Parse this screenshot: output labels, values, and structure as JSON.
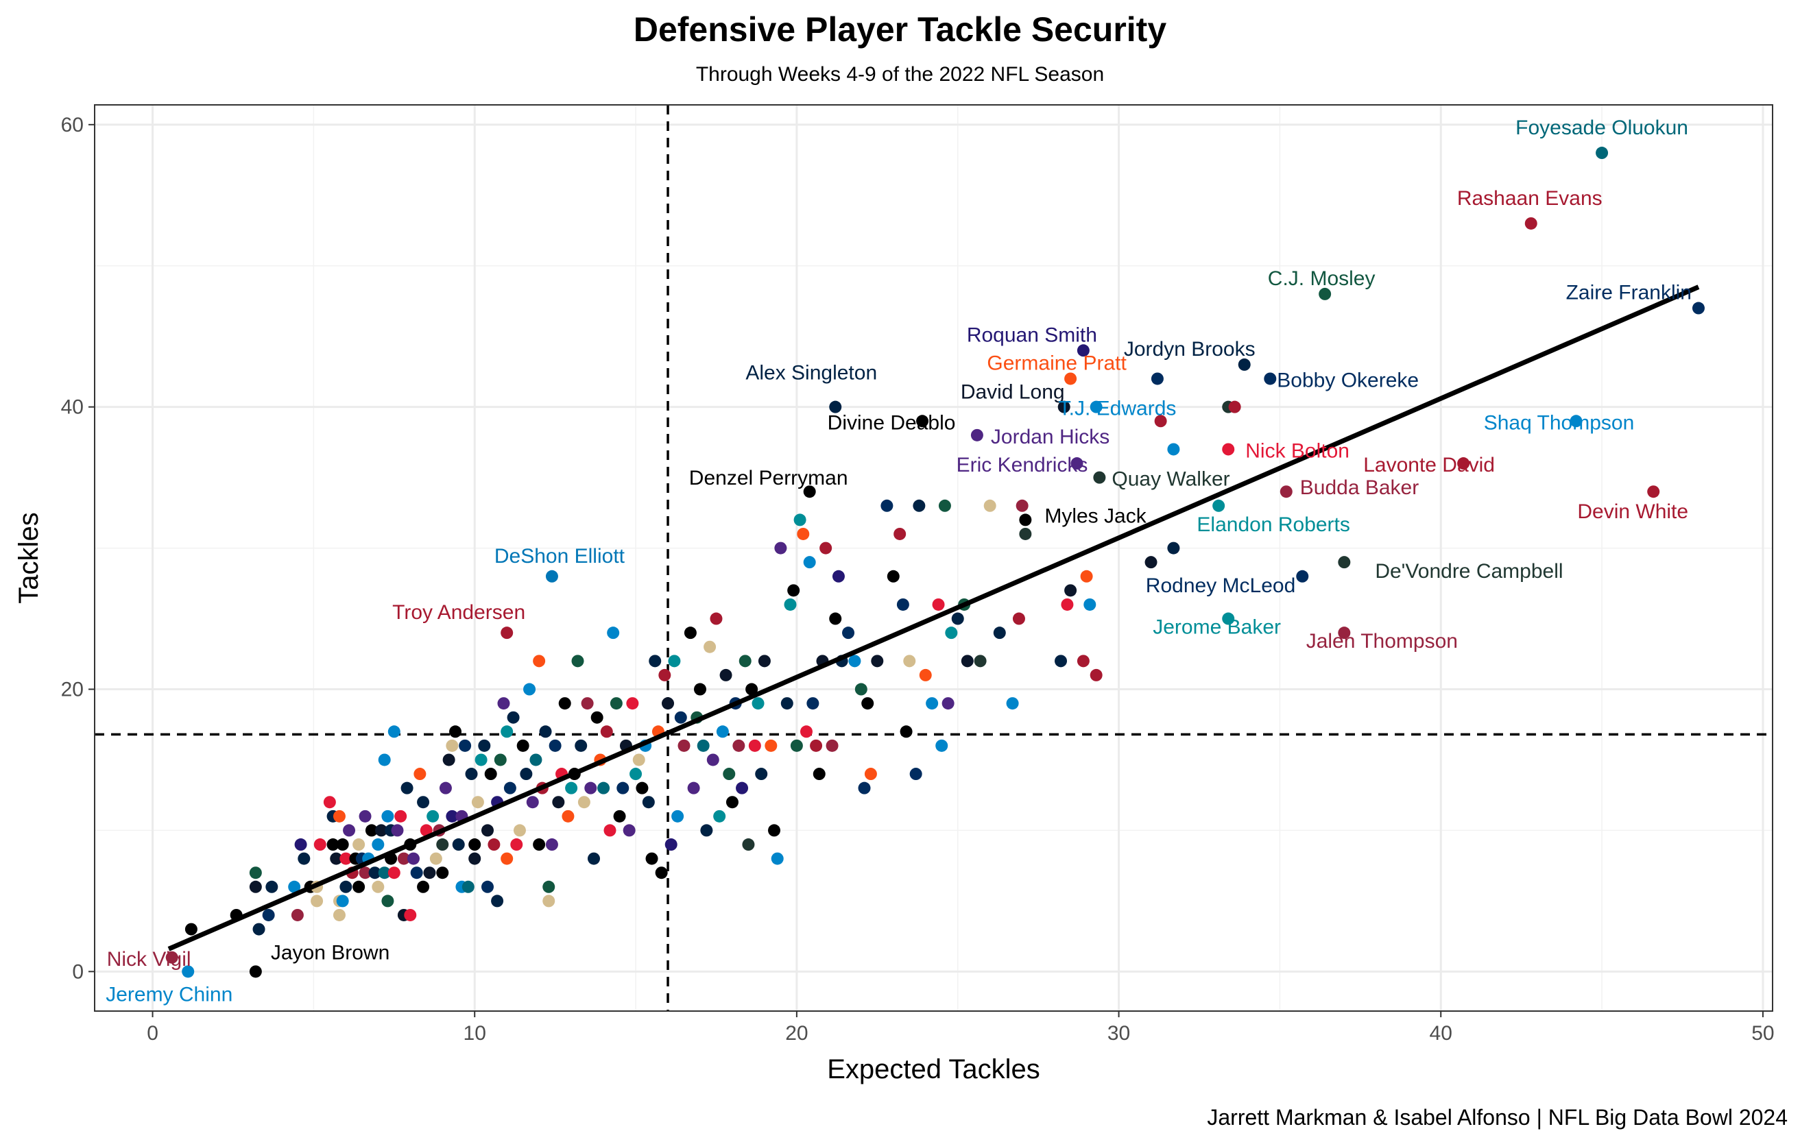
{
  "chart_data": {
    "type": "scatter",
    "title": "Defensive Player Tackle Security",
    "subtitle": "Through Weeks 4-9 of the 2022 NFL Season",
    "caption": "Jarrett Markman & Isabel Alfonso | NFL Big Data Bowl 2024",
    "xlabel": "Expected Tackles",
    "ylabel": "Tackles",
    "xlim": [
      -1.8,
      50.3
    ],
    "ylim": [
      -2.8,
      61.4
    ],
    "x_ticks": [
      0,
      10,
      20,
      30,
      40,
      50
    ],
    "y_ticks": [
      0,
      20,
      40,
      60
    ],
    "grid": true,
    "reference_lines": {
      "vertical_x": 16.0,
      "horizontal_y": 16.8
    },
    "trend_line": {
      "x1": 0.5,
      "y1": 1.6,
      "x2": 48.0,
      "y2": 48.5
    },
    "labeled_players": [
      {
        "name": "Foyesade Oluokun",
        "x": 45.0,
        "y": 58,
        "color": "#006778"
      },
      {
        "name": "Rashaan Evans",
        "x": 42.8,
        "y": 53,
        "color": "#a71930"
      },
      {
        "name": "C.J. Mosley",
        "x": 36.4,
        "y": 48,
        "color": "#125740"
      },
      {
        "name": "Zaire Franklin",
        "x": 48.0,
        "y": 47,
        "color": "#002c5f"
      },
      {
        "name": "Roquan Smith",
        "x": 28.9,
        "y": 44,
        "color": "#241773"
      },
      {
        "name": "Jordyn Brooks",
        "x": 33.9,
        "y": 43,
        "color": "#002244"
      },
      {
        "name": "Germaine Pratt",
        "x": 28.5,
        "y": 42,
        "color": "#fb4f14"
      },
      {
        "name": "Alex Singleton",
        "x": 21.2,
        "y": 40,
        "color": "#002244"
      },
      {
        "name": "Divine Deablo",
        "x": 23.9,
        "y": 39,
        "color": "#000000"
      },
      {
        "name": "David Long",
        "x": 28.3,
        "y": 40,
        "color": "#0b162a"
      },
      {
        "name": "T.J. Edwards",
        "x": 29.3,
        "y": 40,
        "color": "#0085ca"
      },
      {
        "name": "Bobby Okereke",
        "x": 34.7,
        "y": 42,
        "color": "#002c5f"
      },
      {
        "name": "Shaq Thompson",
        "x": 44.2,
        "y": 39,
        "color": "#0085ca"
      },
      {
        "name": "Jordan Hicks",
        "x": 25.6,
        "y": 38,
        "color": "#4f2683"
      },
      {
        "name": "Nick Bolton",
        "x": 33.4,
        "y": 37,
        "color": "#e31837"
      },
      {
        "name": "Lavonte David",
        "x": 40.7,
        "y": 36,
        "color": "#a71930"
      },
      {
        "name": "Eric Kendricks",
        "x": 28.7,
        "y": 36,
        "color": "#4f2683"
      },
      {
        "name": "Quay Walker",
        "x": 29.4,
        "y": 35,
        "color": "#203731"
      },
      {
        "name": "Budda Baker",
        "x": 35.2,
        "y": 34,
        "color": "#97233f"
      },
      {
        "name": "Devin White",
        "x": 46.6,
        "y": 34,
        "color": "#a71930"
      },
      {
        "name": "Denzel Perryman",
        "x": 20.4,
        "y": 34,
        "color": "#000000"
      },
      {
        "name": "Myles Jack",
        "x": 27.1,
        "y": 32,
        "color": "#000000"
      },
      {
        "name": "Elandon Roberts",
        "x": 33.1,
        "y": 33,
        "color": "#008e97"
      },
      {
        "name": "DeShon Elliott",
        "x": 12.4,
        "y": 28,
        "color": "#0076b6"
      },
      {
        "name": "De'Vondre Campbell",
        "x": 37.0,
        "y": 29,
        "color": "#203731"
      },
      {
        "name": "Rodney McLeod",
        "x": 35.7,
        "y": 28,
        "color": "#002c5f"
      },
      {
        "name": "Troy Andersen",
        "x": 11.0,
        "y": 24,
        "color": "#a71930"
      },
      {
        "name": "Jerome Baker",
        "x": 33.4,
        "y": 25,
        "color": "#008e97"
      },
      {
        "name": "Jalen Thompson",
        "x": 37.0,
        "y": 24,
        "color": "#97233f"
      },
      {
        "name": "Nick Vigil",
        "x": 0.6,
        "y": 1,
        "color": "#97233f"
      },
      {
        "name": "Jayon Brown",
        "x": 3.2,
        "y": 0,
        "color": "#000000"
      },
      {
        "name": "Jeremy Chinn",
        "x": 1.1,
        "y": 0,
        "color": "#0085ca"
      }
    ],
    "other_players": [
      [
        1.2,
        3,
        "#000000"
      ],
      [
        2.6,
        4,
        "#000000"
      ],
      [
        3.3,
        3,
        "#002244"
      ],
      [
        3.2,
        6,
        "#0b162a"
      ],
      [
        3.2,
        7,
        "#125740"
      ],
      [
        3.6,
        4,
        "#002c5f"
      ],
      [
        3.7,
        6,
        "#002244"
      ],
      [
        4.4,
        6,
        "#0085ca"
      ],
      [
        4.5,
        4,
        "#97233f"
      ],
      [
        4.6,
        9,
        "#241773"
      ],
      [
        4.7,
        8,
        "#002244"
      ],
      [
        4.9,
        6,
        "#000000"
      ],
      [
        5.1,
        5,
        "#d3bc8d"
      ],
      [
        5.1,
        6,
        "#d3bc8d"
      ],
      [
        5.2,
        9,
        "#e31837"
      ],
      [
        5.5,
        12,
        "#e31837"
      ],
      [
        5.6,
        11,
        "#002244"
      ],
      [
        5.6,
        9,
        "#000000"
      ],
      [
        5.7,
        8,
        "#0b162a"
      ],
      [
        5.8,
        5,
        "#d3bc8d"
      ],
      [
        5.8,
        4,
        "#d3bc8d"
      ],
      [
        5.8,
        11,
        "#fb4f14"
      ],
      [
        5.9,
        9,
        "#000000"
      ],
      [
        5.9,
        5,
        "#0085ca"
      ],
      [
        6.0,
        8,
        "#e31837"
      ],
      [
        6.0,
        6,
        "#002244"
      ],
      [
        6.1,
        10,
        "#4f2683"
      ],
      [
        6.2,
        7,
        "#a71930"
      ],
      [
        6.3,
        8,
        "#000000"
      ],
      [
        6.4,
        9,
        "#d3bc8d"
      ],
      [
        6.4,
        6,
        "#000000"
      ],
      [
        6.5,
        8,
        "#002c5f"
      ],
      [
        6.6,
        7,
        "#97233f"
      ],
      [
        6.6,
        11,
        "#4f2683"
      ],
      [
        6.7,
        8,
        "#0085ca"
      ],
      [
        6.8,
        10,
        "#000000"
      ],
      [
        6.9,
        7,
        "#002244"
      ],
      [
        7.0,
        6,
        "#d3bc8d"
      ],
      [
        7.0,
        9,
        "#0085ca"
      ],
      [
        7.1,
        10,
        "#0b162a"
      ],
      [
        7.2,
        15,
        "#0085ca"
      ],
      [
        7.2,
        7,
        "#006778"
      ],
      [
        7.3,
        5,
        "#125740"
      ],
      [
        7.3,
        11,
        "#0085ca"
      ],
      [
        7.4,
        8,
        "#000000"
      ],
      [
        7.4,
        10,
        "#002244"
      ],
      [
        7.5,
        7,
        "#e31837"
      ],
      [
        7.5,
        17,
        "#0085ca"
      ],
      [
        7.6,
        10,
        "#4f2683"
      ],
      [
        7.7,
        11,
        "#e31837"
      ],
      [
        7.8,
        8,
        "#97233f"
      ],
      [
        7.8,
        4,
        "#0b162a"
      ],
      [
        7.9,
        13,
        "#002244"
      ],
      [
        8.0,
        9,
        "#000000"
      ],
      [
        8.0,
        4,
        "#e31837"
      ],
      [
        8.1,
        8,
        "#4f2683"
      ],
      [
        8.2,
        7,
        "#002c5f"
      ],
      [
        8.3,
        14,
        "#fb4f14"
      ],
      [
        8.4,
        6,
        "#000000"
      ],
      [
        8.4,
        12,
        "#002244"
      ],
      [
        8.5,
        10,
        "#e31837"
      ],
      [
        8.6,
        7,
        "#0b162a"
      ],
      [
        8.7,
        11,
        "#008e97"
      ],
      [
        8.8,
        8,
        "#d3bc8d"
      ],
      [
        8.9,
        10,
        "#97233f"
      ],
      [
        9.0,
        9,
        "#203731"
      ],
      [
        9.0,
        7,
        "#000000"
      ],
      [
        9.1,
        13,
        "#4f2683"
      ],
      [
        9.2,
        15,
        "#0b162a"
      ],
      [
        9.3,
        16,
        "#d3bc8d"
      ],
      [
        9.3,
        11,
        "#241773"
      ],
      [
        9.4,
        17,
        "#000000"
      ],
      [
        9.5,
        9,
        "#002244"
      ],
      [
        9.6,
        11,
        "#4f2683"
      ],
      [
        9.6,
        6,
        "#0085ca"
      ],
      [
        9.7,
        16,
        "#002c5f"
      ],
      [
        9.8,
        6,
        "#006778"
      ],
      [
        9.9,
        14,
        "#002244"
      ],
      [
        10.0,
        9,
        "#000000"
      ],
      [
        10.0,
        8,
        "#0b162a"
      ],
      [
        10.1,
        12,
        "#d3bc8d"
      ],
      [
        10.2,
        15,
        "#008e97"
      ],
      [
        10.3,
        16,
        "#002244"
      ],
      [
        10.4,
        10,
        "#0b162a"
      ],
      [
        10.4,
        6,
        "#002c5f"
      ],
      [
        10.5,
        14,
        "#000000"
      ],
      [
        10.6,
        9,
        "#a71930"
      ],
      [
        10.7,
        5,
        "#002244"
      ],
      [
        10.7,
        12,
        "#241773"
      ],
      [
        10.8,
        15,
        "#125740"
      ],
      [
        10.9,
        19,
        "#4f2683"
      ],
      [
        11.0,
        17,
        "#008e97"
      ],
      [
        11.0,
        8,
        "#fb4f14"
      ],
      [
        11.1,
        13,
        "#002c5f"
      ],
      [
        11.2,
        18,
        "#002244"
      ],
      [
        11.3,
        9,
        "#e31837"
      ],
      [
        11.4,
        10,
        "#d3bc8d"
      ],
      [
        11.5,
        16,
        "#000000"
      ],
      [
        11.6,
        14,
        "#002244"
      ],
      [
        11.7,
        20,
        "#0085ca"
      ],
      [
        11.8,
        12,
        "#4f2683"
      ],
      [
        11.9,
        15,
        "#006778"
      ],
      [
        12.0,
        9,
        "#000000"
      ],
      [
        12.0,
        22,
        "#fb4f14"
      ],
      [
        12.1,
        13,
        "#a71930"
      ],
      [
        12.2,
        17,
        "#002244"
      ],
      [
        12.3,
        5,
        "#d3bc8d"
      ],
      [
        12.3,
        6,
        "#125740"
      ],
      [
        12.4,
        9,
        "#4f2683"
      ],
      [
        12.5,
        16,
        "#002c5f"
      ],
      [
        12.6,
        12,
        "#0b162a"
      ],
      [
        12.7,
        14,
        "#e31837"
      ],
      [
        12.8,
        19,
        "#000000"
      ],
      [
        12.9,
        11,
        "#fb4f14"
      ],
      [
        13.0,
        13,
        "#008e97"
      ],
      [
        13.1,
        14,
        "#000000"
      ],
      [
        13.2,
        22,
        "#125740"
      ],
      [
        13.3,
        16,
        "#002244"
      ],
      [
        13.4,
        12,
        "#d3bc8d"
      ],
      [
        13.5,
        19,
        "#97233f"
      ],
      [
        13.6,
        13,
        "#4f2683"
      ],
      [
        13.7,
        8,
        "#002244"
      ],
      [
        13.8,
        18,
        "#000000"
      ],
      [
        13.9,
        15,
        "#fb4f14"
      ],
      [
        14.0,
        13,
        "#006778"
      ],
      [
        14.1,
        17,
        "#a71930"
      ],
      [
        14.2,
        10,
        "#e31837"
      ],
      [
        14.3,
        24,
        "#0085ca"
      ],
      [
        14.4,
        19,
        "#125740"
      ],
      [
        14.5,
        11,
        "#000000"
      ],
      [
        14.6,
        13,
        "#002c5f"
      ],
      [
        14.7,
        16,
        "#0b162a"
      ],
      [
        14.8,
        10,
        "#4f2683"
      ],
      [
        14.9,
        19,
        "#e31837"
      ],
      [
        15.0,
        14,
        "#008e97"
      ],
      [
        15.1,
        15,
        "#d3bc8d"
      ],
      [
        15.2,
        13,
        "#000000"
      ],
      [
        15.3,
        16,
        "#0085ca"
      ],
      [
        15.4,
        12,
        "#002244"
      ],
      [
        15.5,
        8,
        "#000000"
      ],
      [
        15.6,
        22,
        "#002244"
      ],
      [
        15.7,
        17,
        "#fb4f14"
      ],
      [
        15.8,
        7,
        "#000000"
      ],
      [
        15.9,
        21,
        "#a71930"
      ],
      [
        16.0,
        19,
        "#0b162a"
      ],
      [
        16.1,
        9,
        "#241773"
      ],
      [
        16.2,
        22,
        "#008e97"
      ],
      [
        16.3,
        11,
        "#0085ca"
      ],
      [
        16.4,
        18,
        "#002c5f"
      ],
      [
        16.5,
        16,
        "#97233f"
      ],
      [
        16.7,
        24,
        "#000000"
      ],
      [
        16.8,
        13,
        "#4f2683"
      ],
      [
        16.9,
        18,
        "#125740"
      ],
      [
        17.0,
        20,
        "#000000"
      ],
      [
        17.1,
        16,
        "#006778"
      ],
      [
        17.2,
        10,
        "#002244"
      ],
      [
        17.3,
        23,
        "#d3bc8d"
      ],
      [
        17.4,
        15,
        "#4f2683"
      ],
      [
        17.5,
        25,
        "#a71930"
      ],
      [
        17.6,
        11,
        "#008e97"
      ],
      [
        17.7,
        17,
        "#0085ca"
      ],
      [
        17.8,
        21,
        "#0b162a"
      ],
      [
        17.9,
        14,
        "#125740"
      ],
      [
        18.0,
        12,
        "#000000"
      ],
      [
        18.1,
        19,
        "#002c5f"
      ],
      [
        18.2,
        16,
        "#97233f"
      ],
      [
        18.3,
        13,
        "#241773"
      ],
      [
        18.4,
        22,
        "#125740"
      ],
      [
        18.5,
        9,
        "#203731"
      ],
      [
        18.6,
        20,
        "#000000"
      ],
      [
        18.7,
        16,
        "#e31837"
      ],
      [
        18.8,
        19,
        "#008e97"
      ],
      [
        18.9,
        14,
        "#002244"
      ],
      [
        19.0,
        22,
        "#0b162a"
      ],
      [
        19.2,
        16,
        "#fb4f14"
      ],
      [
        19.3,
        10,
        "#000000"
      ],
      [
        19.4,
        8,
        "#0085ca"
      ],
      [
        19.5,
        30,
        "#4f2683"
      ],
      [
        19.7,
        19,
        "#002244"
      ],
      [
        19.8,
        26,
        "#008e97"
      ],
      [
        19.9,
        27,
        "#000000"
      ],
      [
        20.0,
        16,
        "#125740"
      ],
      [
        20.1,
        32,
        "#008e97"
      ],
      [
        20.2,
        31,
        "#fb4f14"
      ],
      [
        20.3,
        17,
        "#e31837"
      ],
      [
        20.4,
        29,
        "#0085ca"
      ],
      [
        20.5,
        19,
        "#002c5f"
      ],
      [
        20.6,
        16,
        "#a71930"
      ],
      [
        20.7,
        14,
        "#000000"
      ],
      [
        20.8,
        22,
        "#0b162a"
      ],
      [
        20.9,
        30,
        "#a71930"
      ],
      [
        21.1,
        16,
        "#97233f"
      ],
      [
        21.2,
        25,
        "#000000"
      ],
      [
        21.3,
        28,
        "#241773"
      ],
      [
        21.4,
        22,
        "#002244"
      ],
      [
        21.6,
        24,
        "#002c5f"
      ],
      [
        21.8,
        22,
        "#0085ca"
      ],
      [
        22.0,
        20,
        "#125740"
      ],
      [
        22.1,
        13,
        "#002c5f"
      ],
      [
        22.2,
        19,
        "#000000"
      ],
      [
        22.3,
        14,
        "#fb4f14"
      ],
      [
        22.5,
        22,
        "#0b162a"
      ],
      [
        22.8,
        33,
        "#002c5f"
      ],
      [
        23.0,
        28,
        "#000000"
      ],
      [
        23.2,
        31,
        "#a71930"
      ],
      [
        23.3,
        26,
        "#002c5f"
      ],
      [
        23.4,
        17,
        "#000000"
      ],
      [
        23.5,
        22,
        "#d3bc8d"
      ],
      [
        23.7,
        14,
        "#002c5f"
      ],
      [
        23.8,
        33,
        "#002244"
      ],
      [
        24.0,
        21,
        "#fb4f14"
      ],
      [
        24.2,
        19,
        "#0085ca"
      ],
      [
        24.4,
        26,
        "#e31837"
      ],
      [
        24.5,
        16,
        "#0085ca"
      ],
      [
        24.6,
        33,
        "#125740"
      ],
      [
        24.7,
        19,
        "#4f2683"
      ],
      [
        24.8,
        24,
        "#008e97"
      ],
      [
        25.0,
        25,
        "#002244"
      ],
      [
        25.2,
        26,
        "#125740"
      ],
      [
        25.3,
        22,
        "#0b162a"
      ],
      [
        25.7,
        22,
        "#203731"
      ],
      [
        26.0,
        33,
        "#d3bc8d"
      ],
      [
        26.3,
        24,
        "#002244"
      ],
      [
        26.7,
        19,
        "#0085ca"
      ],
      [
        26.9,
        25,
        "#a71930"
      ],
      [
        27.0,
        33,
        "#97233f"
      ],
      [
        27.1,
        31,
        "#203731"
      ],
      [
        28.2,
        22,
        "#002244"
      ],
      [
        28.4,
        26,
        "#e31837"
      ],
      [
        28.5,
        27,
        "#0b162a"
      ],
      [
        28.9,
        22,
        "#a71930"
      ],
      [
        29.0,
        28,
        "#fb4f14"
      ],
      [
        29.1,
        26,
        "#0085ca"
      ],
      [
        29.3,
        21,
        "#a71930"
      ],
      [
        31.0,
        29,
        "#0b162a"
      ],
      [
        31.7,
        30,
        "#002244"
      ],
      [
        31.2,
        42,
        "#002c5f"
      ],
      [
        31.3,
        39,
        "#a71930"
      ],
      [
        31.7,
        37,
        "#0085ca"
      ],
      [
        33.4,
        40,
        "#203731"
      ],
      [
        33.6,
        40,
        "#a71930"
      ]
    ]
  }
}
